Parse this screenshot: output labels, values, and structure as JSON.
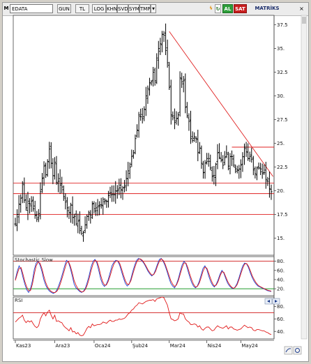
{
  "toolbar": {
    "m_icon": "M",
    "symbol": "EDATA",
    "buttons": [
      "GUN",
      "TL",
      "LOG",
      "KHN",
      "SVD",
      "SYM",
      "TMP"
    ],
    "dropdown_arrow": "▼",
    "al": "AL",
    "sat": "SAT",
    "matriks": "MATRİKS"
  },
  "chart_data": [
    {
      "type": "candlestick",
      "x_tick_labels": [
        "Kas23",
        "Ara23",
        "Oca24",
        "Şub24",
        "Mar24",
        "Nis24",
        "May24"
      ],
      "y_ticks": [
        15,
        17.5,
        20,
        22.5,
        25,
        27.5,
        30,
        32.5,
        35,
        37.5
      ],
      "y_tick_labels": [
        "15.",
        "17.5",
        "20.",
        "22.5",
        "25.",
        "27.5",
        "30.",
        "32.5",
        "35.",
        "37.5"
      ],
      "ylim": [
        13.2,
        38.5
      ],
      "horizontal_lines": [
        20.8,
        19.7,
        17.5,
        24.6
      ],
      "trendline": {
        "from": [
          86,
          36.8
        ],
        "to": [
          144,
          21.5
        ]
      },
      "close": [
        16.5,
        17.5,
        18.6,
        19.2,
        20.8,
        19.0,
        18.2,
        18.9,
        18.6,
        18.9,
        18.1,
        17.4,
        17.0,
        17.6,
        19.9,
        21.3,
        22.6,
        21.7,
        23.1,
        24.4,
        22.9,
        21.6,
        23.0,
        20.9,
        21.0,
        20.6,
        20.4,
        19.4,
        18.8,
        18.2,
        17.7,
        18.5,
        17.2,
        17.3,
        16.5,
        16.8,
        15.8,
        15.5,
        15.6,
        16.4,
        17.3,
        17.7,
        17.4,
        18.6,
        18.1,
        18.2,
        18.3,
        18.4,
        18.5,
        19.1,
        19.0,
        18.9,
        19.5,
        19.8,
        19.6,
        19.6,
        20.0,
        20.0,
        20.3,
        20.1,
        20.3,
        20.4,
        21.3,
        22.1,
        22.5,
        23.6,
        24.0,
        25.5,
        26.4,
        28.0,
        27.8,
        27.6,
        28.6,
        30.0,
        30.8,
        31.4,
        31.5,
        32.5,
        31.6,
        34.0,
        35.0,
        35.5,
        36.5,
        36.4,
        34.8,
        33.5,
        30.9,
        28.0,
        27.9,
        27.2,
        27.6,
        28.0,
        31.9,
        31.5,
        31.6,
        28.8,
        27.9,
        27.3,
        25.5,
        25.3,
        25.7,
        25.5,
        24.0,
        24.5,
        22.9,
        21.9,
        22.9,
        23.4,
        23.4,
        22.4,
        21.5,
        21.6,
        22.8,
        24.0,
        23.5,
        23.2,
        22.7,
        23.5,
        24.0,
        22.6,
        23.6,
        23.6,
        22.7,
        22.3,
        22.2,
        22.3,
        22.7,
        23.6,
        24.6,
        24.1,
        23.4,
        23.6,
        23.3,
        22.2,
        21.8,
        22.4,
        22.4,
        22.3,
        21.8,
        21.9,
        21.2,
        21.0,
        20.2,
        19.9
      ],
      "ohlc_spread": "±0.6",
      "series": [
        {
          "name": "EDATA"
        }
      ]
    },
    {
      "type": "line",
      "title": "Stochastic Slow",
      "ylim": [
        5,
        90
      ],
      "y_ticks": [
        20,
        40,
        60,
        80
      ],
      "y_tick_labels": [
        "20.",
        "40.",
        "60.",
        "80."
      ],
      "horizontal_lines": [
        80,
        20
      ],
      "series": [
        {
          "name": "",
          "color": "#1f3fd0"
        },
        {
          "name": "",
          "color": "#e01818"
        }
      ],
      "values_k": [
        40,
        58,
        70,
        62,
        45,
        30,
        18,
        12,
        20,
        38,
        62,
        76,
        80,
        72,
        58,
        40,
        28,
        20,
        15,
        12,
        10,
        12,
        18,
        28,
        40,
        55,
        70,
        82,
        78,
        65,
        48,
        30,
        22,
        18,
        14,
        12,
        15,
        22,
        35,
        50,
        68,
        80,
        84,
        76,
        60,
        42,
        30,
        25,
        30,
        40,
        55,
        70,
        78,
        82,
        80,
        72,
        58,
        44,
        32,
        26,
        30,
        42,
        58,
        72,
        82,
        86,
        84,
        80,
        74,
        66,
        58,
        52,
        48,
        52,
        62,
        74,
        84,
        86,
        80,
        70,
        58,
        44,
        32,
        26,
        22,
        30,
        42,
        58,
        72,
        80,
        74,
        60,
        46,
        34,
        26,
        22,
        26,
        36,
        50,
        64,
        70,
        62,
        48,
        36,
        28,
        24,
        30,
        40,
        52,
        60,
        54,
        42,
        32,
        26,
        22,
        20,
        24,
        32,
        44,
        58,
        70,
        76,
        74,
        66,
        54,
        44,
        36,
        30,
        26,
        24,
        22,
        20,
        18,
        16,
        15,
        14
      ],
      "values_d": [
        38,
        52,
        64,
        66,
        52,
        36,
        24,
        16,
        16,
        30,
        52,
        70,
        78,
        76,
        64,
        48,
        34,
        24,
        18,
        14,
        12,
        12,
        15,
        22,
        34,
        48,
        62,
        76,
        80,
        70,
        55,
        38,
        28,
        20,
        16,
        13,
        14,
        19,
        29,
        43,
        60,
        74,
        82,
        80,
        68,
        50,
        36,
        28,
        28,
        36,
        48,
        62,
        74,
        80,
        81,
        76,
        64,
        50,
        38,
        30,
        30,
        38,
        52,
        66,
        78,
        84,
        85,
        82,
        76,
        69,
        61,
        55,
        50,
        51,
        58,
        70,
        80,
        85,
        82,
        74,
        62,
        50,
        38,
        30,
        25,
        28,
        38,
        52,
        66,
        76,
        76,
        66,
        52,
        40,
        30,
        24,
        25,
        32,
        44,
        58,
        67,
        65,
        54,
        42,
        32,
        26,
        28,
        36,
        48,
        57,
        56,
        46,
        36,
        29,
        24,
        21,
        23,
        29,
        40,
        53,
        65,
        74,
        75,
        69,
        59,
        48,
        40,
        33,
        28,
        25,
        23,
        21,
        19,
        17,
        16,
        15
      ]
    },
    {
      "type": "line",
      "title": "RSI",
      "ylim": [
        28,
        95
      ],
      "y_ticks": [
        40,
        60,
        80
      ],
      "y_tick_labels": [
        "40.",
        "60.",
        "80."
      ],
      "horizontal_lines": [
        70
      ],
      "series": [
        {
          "name": "",
          "color": "#e01818"
        }
      ],
      "values": [
        55,
        58,
        61,
        63,
        66,
        58,
        54,
        57,
        55,
        57,
        52,
        48,
        46,
        49,
        60,
        66,
        70,
        65,
        71,
        74,
        66,
        60,
        66,
        56,
        57,
        55,
        54,
        49,
        46,
        44,
        41,
        46,
        39,
        40,
        36,
        38,
        34,
        33,
        34,
        39,
        45,
        48,
        46,
        52,
        49,
        50,
        51,
        51,
        52,
        55,
        54,
        53,
        56,
        58,
        56,
        56,
        58,
        58,
        60,
        59,
        60,
        61,
        64,
        68,
        70,
        74,
        76,
        80,
        82,
        86,
        85,
        84,
        86,
        88,
        89,
        90,
        90,
        91,
        88,
        92,
        93,
        94,
        95,
        94,
        88,
        82,
        70,
        60,
        59,
        57,
        58,
        60,
        70,
        68,
        68,
        60,
        57,
        55,
        51,
        51,
        52,
        51,
        47,
        49,
        44,
        42,
        45,
        47,
        47,
        44,
        41,
        42,
        46,
        49,
        47,
        46,
        45,
        47,
        49,
        44,
        47,
        47,
        44,
        43,
        42,
        43,
        44,
        47,
        50,
        48,
        46,
        47,
        46,
        42,
        41,
        43,
        43,
        42,
        41,
        41,
        39,
        38,
        36,
        35
      ]
    }
  ]
}
